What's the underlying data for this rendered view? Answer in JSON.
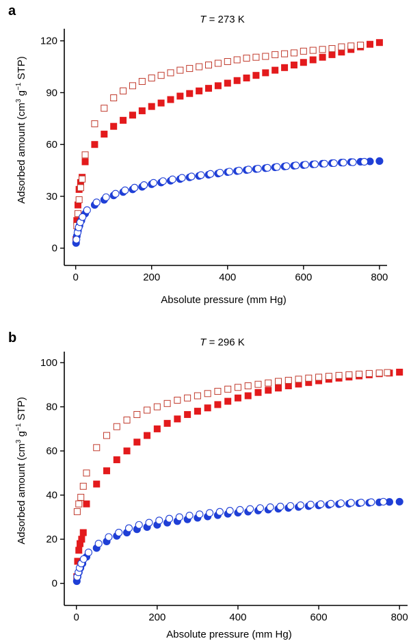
{
  "chart_data": [
    {
      "panel": "a",
      "type": "scatter",
      "title": "T = 273 K",
      "title_var": "T",
      "title_rest": " = 273 K",
      "xlabel": "Absolute pressure (mm Hg)",
      "ylabel": "Adsorbed amount (cm3 g−1 STP)",
      "ylabel_parts": [
        "Adsorbed amount (cm",
        "3",
        " g",
        "−1",
        " STP)"
      ],
      "xlim": [
        -30,
        820
      ],
      "ylim": [
        -10,
        127
      ],
      "xticks": [
        0,
        200,
        400,
        600,
        800
      ],
      "yticks": [
        0,
        30,
        60,
        90,
        120
      ],
      "grid": false,
      "legend": "none",
      "series": [
        {
          "color": "#e31a1c",
          "marker": "square",
          "filled": true,
          "x": [
            1,
            3,
            6,
            9,
            13,
            17,
            25,
            50,
            75,
            100,
            125,
            150,
            175,
            200,
            225,
            250,
            275,
            300,
            325,
            350,
            375,
            400,
            425,
            450,
            475,
            500,
            525,
            550,
            575,
            600,
            625,
            650,
            675,
            700,
            725,
            750,
            775,
            800
          ],
          "y": [
            5,
            16,
            25,
            34,
            38,
            41,
            50,
            60,
            66,
            70.5,
            74,
            77,
            79.5,
            82,
            84,
            86,
            88,
            89.5,
            91,
            92.5,
            94,
            95.5,
            97,
            98.5,
            100,
            101.5,
            103,
            104.5,
            106,
            107.5,
            109,
            110.5,
            112,
            113.5,
            115,
            116.5,
            118,
            119
          ]
        },
        {
          "color": "#c0392b",
          "marker": "square",
          "filled": false,
          "x": [
            1,
            3,
            6,
            9,
            13,
            17,
            25,
            50,
            75,
            100,
            125,
            150,
            175,
            200,
            225,
            250,
            275,
            300,
            325,
            350,
            375,
            400,
            425,
            450,
            475,
            500,
            525,
            550,
            575,
            600,
            625,
            650,
            675,
            700,
            725,
            750
          ],
          "y": [
            4,
            13,
            20,
            28,
            35,
            40,
            54,
            72,
            81,
            87,
            91,
            94,
            96.5,
            98.5,
            100,
            101.5,
            103,
            104,
            105,
            106,
            107,
            108,
            109,
            110,
            110.5,
            111,
            112,
            112.5,
            113,
            114,
            114.5,
            115,
            115.5,
            116.5,
            117,
            117.5
          ]
        },
        {
          "color": "#1f3fd6",
          "marker": "circle",
          "filled": true,
          "x": [
            1,
            3,
            6,
            10,
            15,
            25,
            50,
            75,
            100,
            125,
            150,
            175,
            200,
            225,
            250,
            275,
            300,
            325,
            350,
            375,
            400,
            425,
            450,
            475,
            500,
            525,
            550,
            575,
            600,
            625,
            650,
            675,
            700,
            725,
            750,
            775,
            800
          ],
          "y": [
            3,
            7,
            10,
            13,
            16,
            20,
            25,
            28,
            30.5,
            32.5,
            34,
            35.5,
            37,
            38,
            39,
            40,
            41,
            41.8,
            42.5,
            43.2,
            44,
            44.6,
            45.2,
            45.8,
            46.3,
            46.8,
            47.3,
            47.7,
            48.1,
            48.5,
            48.9,
            49.2,
            49.5,
            49.8,
            50,
            50.2,
            50.4
          ]
        },
        {
          "color": "#1f3fd6",
          "marker": "circle",
          "filled": false,
          "x": [
            2,
            5,
            8,
            12,
            18,
            30,
            55,
            80,
            105,
            130,
            155,
            180,
            205,
            230,
            255,
            280,
            305,
            330,
            355,
            380,
            405,
            430,
            455,
            480,
            505,
            530,
            555,
            580,
            605,
            630,
            655,
            680,
            705,
            730,
            760
          ],
          "y": [
            5,
            9,
            12,
            15,
            18,
            22,
            26.5,
            29.5,
            31.5,
            33.5,
            35,
            36.5,
            37.8,
            38.8,
            39.8,
            40.7,
            41.5,
            42.3,
            43,
            43.7,
            44.3,
            44.9,
            45.5,
            46,
            46.5,
            47,
            47.5,
            47.9,
            48.3,
            48.6,
            48.9,
            49.2,
            49.5,
            49.7,
            50
          ]
        }
      ]
    },
    {
      "panel": "b",
      "type": "scatter",
      "title": "T = 296 K",
      "title_var": "T",
      "title_rest": " = 296 K",
      "xlabel": "Absolute pressure (mm Hg)",
      "ylabel": "Adsorbed amount (cm3 g−1 STP)",
      "ylabel_parts": [
        "Adsorbed amount (cm",
        "3",
        " g",
        "−1",
        " STP)"
      ],
      "xlim": [
        -30,
        820
      ],
      "ylim": [
        -10,
        105
      ],
      "xticks": [
        0,
        200,
        400,
        600,
        800
      ],
      "yticks": [
        0,
        20,
        40,
        60,
        80,
        100
      ],
      "grid": false,
      "legend": "none",
      "series": [
        {
          "color": "#e31a1c",
          "marker": "square",
          "filled": true,
          "x": [
            1,
            3,
            6,
            9,
            13,
            17,
            25,
            50,
            75,
            100,
            125,
            150,
            175,
            200,
            225,
            250,
            275,
            300,
            325,
            350,
            375,
            400,
            425,
            450,
            475,
            500,
            525,
            550,
            575,
            600,
            625,
            650,
            675,
            700,
            725,
            750,
            775,
            800
          ],
          "y": [
            3,
            10,
            15,
            18,
            20,
            23,
            36,
            45,
            51,
            56,
            60,
            64,
            67,
            70,
            72.5,
            74.5,
            76.5,
            78,
            79.5,
            81,
            82.5,
            84,
            85,
            86.5,
            87.5,
            88.5,
            89.5,
            90.3,
            91,
            91.8,
            92.5,
            93,
            93.5,
            94,
            94.5,
            95,
            95.3,
            95.7
          ]
        },
        {
          "color": "#c0392b",
          "marker": "square",
          "filled": false,
          "x": [
            2,
            6,
            11,
            17,
            25,
            50,
            75,
            100,
            125,
            150,
            175,
            200,
            225,
            250,
            275,
            300,
            325,
            350,
            375,
            400,
            425,
            450,
            475,
            500,
            525,
            550,
            575,
            600,
            625,
            650,
            675,
            700,
            725,
            750,
            770
          ],
          "y": [
            32.5,
            36,
            39,
            44,
            50,
            61.5,
            67,
            71,
            74,
            76.5,
            78.5,
            80,
            81.5,
            83,
            84,
            85,
            86,
            87,
            88,
            88.8,
            89.5,
            90.2,
            90.8,
            91.5,
            92,
            92.5,
            93,
            93.4,
            93.8,
            94.2,
            94.5,
            94.8,
            95.1,
            95.3,
            95.5
          ]
        },
        {
          "color": "#1f3fd6",
          "marker": "circle",
          "filled": true,
          "x": [
            1,
            3,
            6,
            10,
            15,
            25,
            50,
            75,
            100,
            125,
            150,
            175,
            200,
            225,
            250,
            275,
            300,
            325,
            350,
            375,
            400,
            425,
            450,
            475,
            500,
            525,
            550,
            575,
            600,
            625,
            650,
            675,
            700,
            725,
            750,
            775,
            800
          ],
          "y": [
            1,
            3,
            5,
            7,
            9,
            12,
            16,
            19,
            21.5,
            23,
            24.5,
            25.5,
            26.5,
            27.5,
            28.2,
            29,
            29.7,
            30.3,
            30.9,
            31.5,
            32,
            32.5,
            33,
            33.4,
            33.8,
            34.2,
            34.6,
            35,
            35.3,
            35.6,
            35.9,
            36.1,
            36.3,
            36.5,
            36.7,
            36.9,
            37
          ]
        },
        {
          "color": "#1f3fd6",
          "marker": "circle",
          "filled": false,
          "x": [
            2,
            5,
            8,
            12,
            18,
            30,
            55,
            80,
            105,
            130,
            155,
            180,
            205,
            230,
            255,
            280,
            305,
            330,
            355,
            380,
            405,
            430,
            455,
            480,
            505,
            530,
            555,
            580,
            605,
            630,
            655,
            680,
            705,
            730,
            760
          ],
          "y": [
            3,
            5,
            7,
            9,
            11,
            14,
            18,
            21,
            23,
            25,
            26.5,
            27.5,
            28.5,
            29.3,
            30,
            30.7,
            31.3,
            31.9,
            32.4,
            32.9,
            33.3,
            33.7,
            34.1,
            34.5,
            34.8,
            35.1,
            35.4,
            35.7,
            35.9,
            36.1,
            36.3,
            36.5,
            36.6,
            36.8,
            37
          ]
        }
      ]
    }
  ]
}
